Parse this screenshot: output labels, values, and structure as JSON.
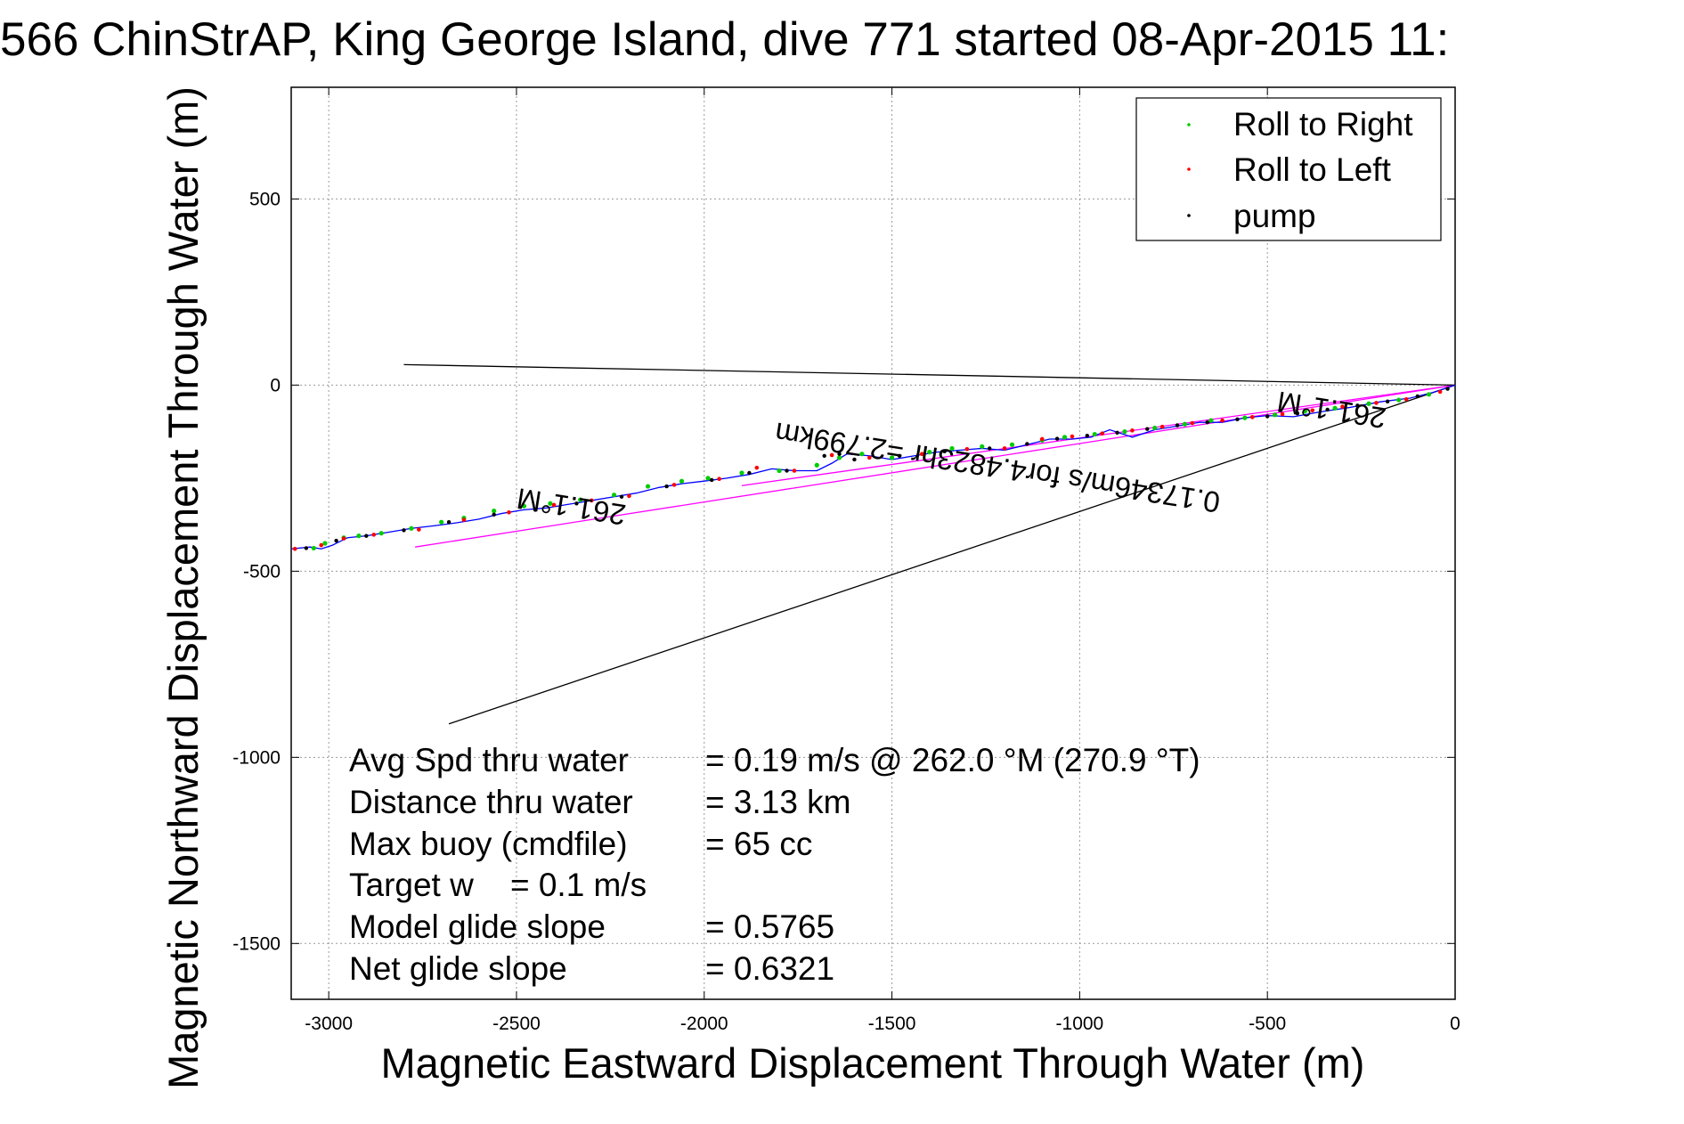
{
  "chart_data": {
    "type": "line",
    "title": "566 ChinStrAP, King George Island, dive 771 started 08-Apr-2015 11:",
    "xlabel": "Magnetic Eastward Displacement Through Water (m)",
    "ylabel": "Magnetic Northward Displacement Through Water (m)",
    "xlim": [
      -3100,
      0
    ],
    "ylim": [
      -1650,
      800
    ],
    "xticks": [
      -3000,
      -2500,
      -2000,
      -1500,
      -1000,
      -500,
      0
    ],
    "yticks": [
      -1500,
      -1000,
      -500,
      0,
      500
    ],
    "grid": true,
    "legend_position": "top-right",
    "legend": [
      {
        "label": "Roll to Right",
        "color": "#00cc00"
      },
      {
        "label": "Roll to Left",
        "color": "#ff0000"
      },
      {
        "label": "pump",
        "color": "#000000"
      }
    ],
    "track": {
      "name": "track",
      "color": "#0000ff",
      "x": [
        0,
        -60,
        -120,
        -200,
        -280,
        -360,
        -430,
        -500,
        -560,
        -620,
        -680,
        -740,
        -800,
        -860,
        -920,
        -970,
        -1020,
        -1080,
        -1140,
        -1200,
        -1260,
        -1320,
        -1380,
        -1440,
        -1500,
        -1560,
        -1620,
        -1660,
        -1700,
        -1760,
        -1820,
        -1880,
        -1940,
        -2000,
        -2060,
        -2120,
        -2180,
        -2240,
        -2300,
        -2360,
        -2420,
        -2480,
        -2540,
        -2600,
        -2660,
        -2720,
        -2780,
        -2840,
        -2900,
        -2950,
        -2990,
        -3020,
        -3050,
        -3100
      ],
      "y": [
        0,
        -20,
        -35,
        -45,
        -60,
        -72,
        -85,
        -82,
        -88,
        -100,
        -100,
        -110,
        -120,
        -140,
        -120,
        -140,
        -145,
        -145,
        -160,
        -175,
        -170,
        -175,
        -180,
        -190,
        -200,
        -190,
        -185,
        -210,
        -230,
        -230,
        -225,
        -240,
        -250,
        -258,
        -265,
        -275,
        -290,
        -300,
        -310,
        -320,
        -330,
        -335,
        -345,
        -360,
        -370,
        -378,
        -385,
        -395,
        -405,
        -410,
        -430,
        -440,
        -435,
        -440
      ]
    },
    "roll_right": {
      "name": "Roll to Right",
      "color": "#00cc00",
      "x": [
        -70,
        -150,
        -230,
        -320,
        -400,
        -480,
        -560,
        -650,
        -720,
        -800,
        -880,
        -960,
        -1040,
        -1100,
        -1180,
        -1260,
        -1340,
        -1400,
        -1500,
        -1580,
        -1640,
        -1700,
        -1800,
        -1900,
        -1990,
        -2060,
        -2150,
        -2240,
        -2330,
        -2410,
        -2480,
        -2560,
        -2640,
        -2700,
        -2780,
        -2860,
        -2920,
        -2960,
        -3010,
        -3040
      ],
      "y": [
        -25,
        -40,
        -50,
        -62,
        -70,
        -80,
        -88,
        -95,
        -105,
        -115,
        -125,
        -132,
        -140,
        -148,
        -160,
        -165,
        -170,
        -180,
        -195,
        -185,
        -195,
        -215,
        -230,
        -236,
        -250,
        -258,
        -272,
        -295,
        -308,
        -318,
        -325,
        -338,
        -357,
        -368,
        -385,
        -398,
        -405,
        -410,
        -425,
        -438
      ]
    },
    "roll_left": {
      "name": "Roll to Left",
      "color": "#ff0000",
      "x": [
        -40,
        -130,
        -210,
        -300,
        -380,
        -460,
        -540,
        -620,
        -700,
        -780,
        -860,
        -940,
        -1020,
        -1100,
        -1200,
        -1300,
        -1420,
        -1560,
        -1660,
        -1760,
        -1860,
        -1960,
        -2080,
        -2200,
        -2300,
        -2400,
        -2520,
        -2640,
        -2760,
        -2880,
        -2960,
        -3020,
        -3090
      ],
      "y": [
        -18,
        -38,
        -48,
        -58,
        -68,
        -78,
        -86,
        -95,
        -102,
        -112,
        -122,
        -130,
        -138,
        -145,
        -170,
        -172,
        -185,
        -195,
        -188,
        -230,
        -222,
        -252,
        -268,
        -298,
        -310,
        -322,
        -342,
        -362,
        -388,
        -402,
        -412,
        -430,
        -440
      ]
    },
    "pump": {
      "name": "pump",
      "color": "#000000",
      "x": [
        -20,
        -100,
        -180,
        -260,
        -340,
        -420,
        -500,
        -580,
        -660,
        -740,
        -820,
        -900,
        -980,
        -1060,
        -1140,
        -1240,
        -1360,
        -1480,
        -1600,
        -1640,
        -1680,
        -1780,
        -1880,
        -1980,
        -2100,
        -2220,
        -2340,
        -2450,
        -2560,
        -2680,
        -2800,
        -2900,
        -2980,
        -3060
      ],
      "y": [
        -10,
        -30,
        -44,
        -55,
        -66,
        -76,
        -84,
        -92,
        -100,
        -108,
        -118,
        -128,
        -136,
        -144,
        -158,
        -170,
        -178,
        -190,
        -200,
        -185,
        -190,
        -230,
        -236,
        -255,
        -272,
        -300,
        -318,
        -335,
        -348,
        -368,
        -390,
        -405,
        -418,
        -438
      ]
    },
    "reference_lines": [
      {
        "name": "magenta-heading-line",
        "color": "#ff00ff",
        "x": [
          0,
          -2770
        ],
        "y": [
          0,
          -435
        ]
      },
      {
        "name": "magenta-heading-line-2",
        "color": "#ff00ff",
        "x": [
          0,
          -1900
        ],
        "y": [
          0,
          -270
        ]
      },
      {
        "name": "black-line-north",
        "color": "#000000",
        "x": [
          0,
          -2800
        ],
        "y": [
          0,
          55
        ]
      },
      {
        "name": "black-line-south",
        "color": "#000000",
        "x": [
          0,
          -2680
        ],
        "y": [
          0,
          -910
        ]
      }
    ],
    "annotations": [
      {
        "text": "261.1°M",
        "x": -2350,
        "y": -300,
        "angle": 189
      },
      {
        "text": "261.1°M",
        "x": -325,
        "y": -40,
        "angle": 189
      },
      {
        "text": "0.17346m/s for4.4823hr =2.799km",
        "x": -1215,
        "y": -195,
        "angle": 189
      }
    ],
    "stats": [
      {
        "label": "Avg Spd thru water",
        "value": "=  0.19 m/s @ 262.0 °M (270.9 °T)"
      },
      {
        "label": "Distance thru water",
        "value": "=  3.13 km"
      },
      {
        "label": "Max buoy (cmdfile)",
        "value": "= 65 cc"
      },
      {
        "label": "Target w    = 0.1 m/s",
        "value": ""
      },
      {
        "label": "Model glide slope",
        "value": "= 0.5765"
      },
      {
        "label": "Net glide slope",
        "value": "= 0.6321"
      }
    ]
  }
}
